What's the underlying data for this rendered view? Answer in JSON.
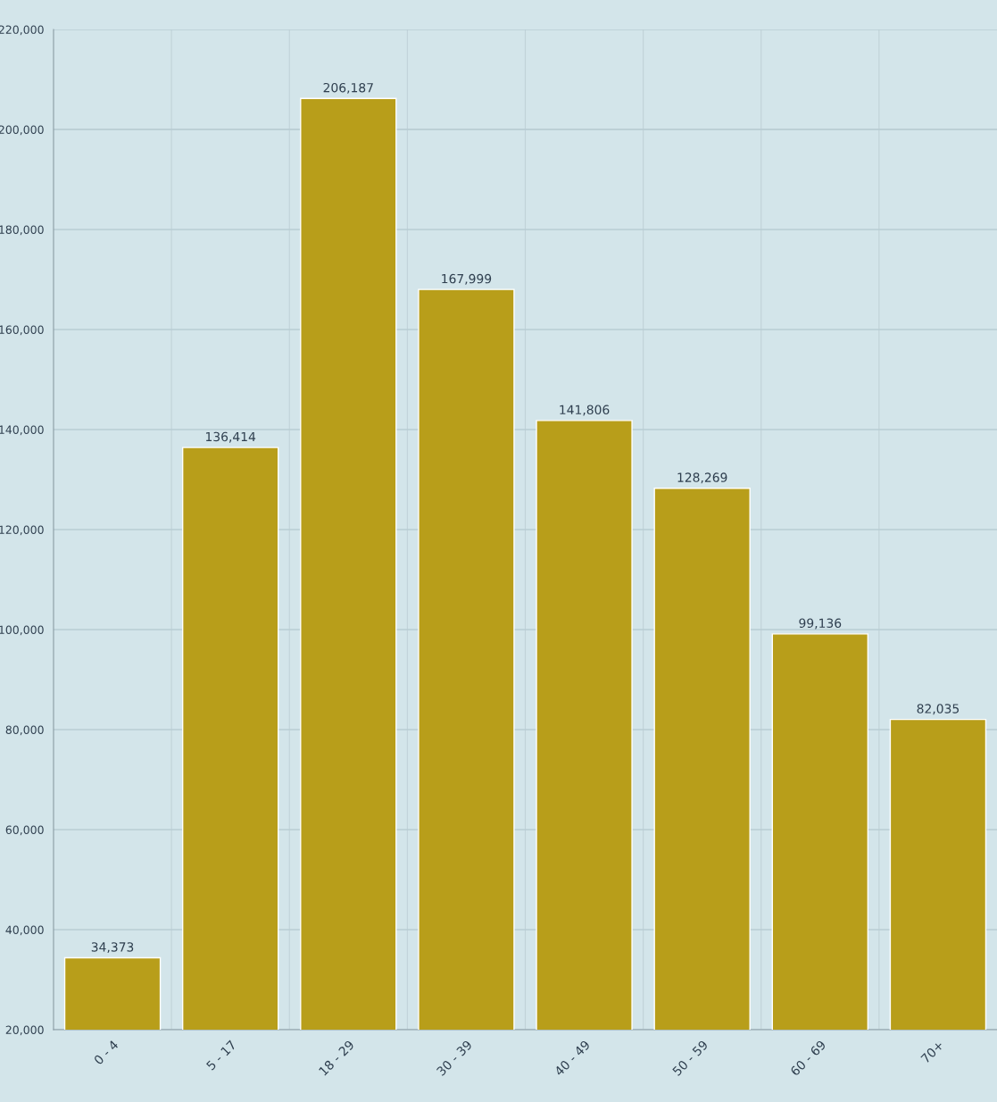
{
  "chart_data": {
    "type": "bar",
    "categories": [
      "0 - 4",
      "5 - 17",
      "18 - 29",
      "30 - 39",
      "40 - 49",
      "50 - 59",
      "60 - 69",
      "70+"
    ],
    "values": [
      34373,
      136414,
      206187,
      167999,
      141806,
      128269,
      99136,
      82035
    ],
    "color": "#b89e1a",
    "ylim": [
      20000,
      220000
    ],
    "yticks": [
      {
        "value": 20000,
        "label": "20,000"
      },
      {
        "value": 40000,
        "label": "40,000"
      },
      {
        "value": 60000,
        "label": "60,000"
      },
      {
        "value": 80000,
        "label": "80,000"
      },
      {
        "value": 100000,
        "label": "100,000"
      },
      {
        "value": 120000,
        "label": "120,000"
      },
      {
        "value": 140000,
        "label": "140,000"
      },
      {
        "value": 160000,
        "label": "160,000"
      },
      {
        "value": 180000,
        "label": "180,000"
      },
      {
        "value": 200000,
        "label": "200,000"
      },
      {
        "value": 220000,
        "label": "220,000"
      }
    ],
    "value_labels": [
      "34,373",
      "136,414",
      "206,187",
      "167,999",
      "141,806",
      "128,269",
      "99,136",
      "82,035"
    ],
    "grid": true,
    "legend": false
  }
}
